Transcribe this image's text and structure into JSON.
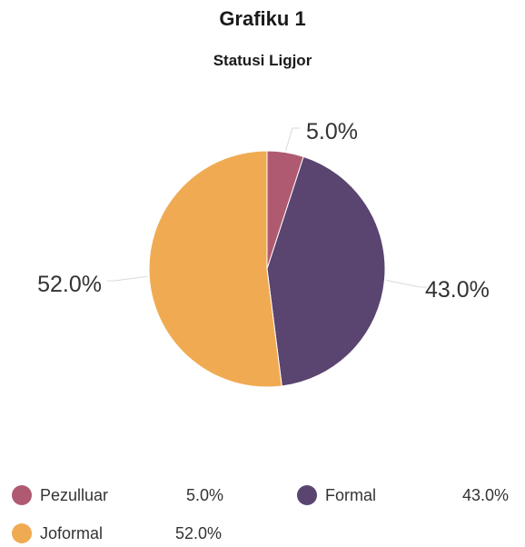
{
  "chart_data": {
    "type": "pie",
    "title": "Grafiku 1",
    "subtitle": "Statusi Ligjor",
    "categories": [
      "Pezulluar",
      "Formal",
      "Joformal"
    ],
    "values": [
      5.0,
      43.0,
      52.0
    ],
    "labels": [
      "5.0%",
      "43.0%",
      "52.0%"
    ],
    "colors": [
      "#b05a72",
      "#5a4470",
      "#f0ab52"
    ],
    "legend_position": "bottom"
  }
}
